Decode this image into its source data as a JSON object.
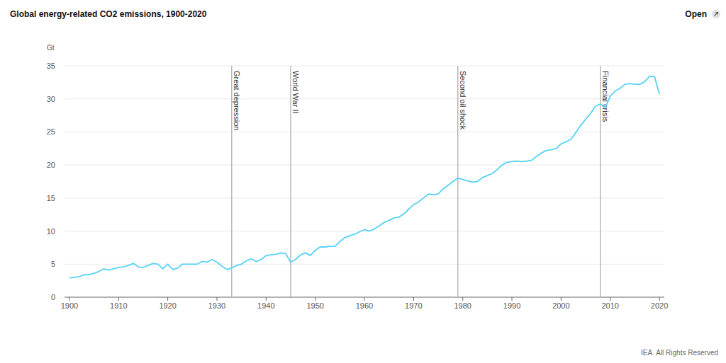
{
  "chart_data": {
    "type": "line",
    "title": "Global energy-related CO2 emissions, 1900-2020",
    "open_label": "Open",
    "y_label": "Gt",
    "source": "IEA. All Rights Reserved",
    "color": "#56d2f5",
    "grid": true,
    "x": [
      1900,
      1901,
      1902,
      1903,
      1904,
      1905,
      1906,
      1907,
      1908,
      1909,
      1910,
      1911,
      1912,
      1913,
      1914,
      1915,
      1916,
      1917,
      1918,
      1919,
      1920,
      1921,
      1922,
      1923,
      1924,
      1925,
      1926,
      1927,
      1928,
      1929,
      1930,
      1931,
      1932,
      1933,
      1934,
      1935,
      1936,
      1937,
      1938,
      1939,
      1940,
      1941,
      1942,
      1943,
      1944,
      1945,
      1946,
      1947,
      1948,
      1949,
      1950,
      1951,
      1952,
      1953,
      1954,
      1955,
      1956,
      1957,
      1958,
      1959,
      1960,
      1961,
      1962,
      1963,
      1964,
      1965,
      1966,
      1967,
      1968,
      1969,
      1970,
      1971,
      1972,
      1973,
      1974,
      1975,
      1976,
      1977,
      1978,
      1979,
      1980,
      1981,
      1982,
      1983,
      1984,
      1985,
      1986,
      1987,
      1988,
      1989,
      1990,
      1991,
      1992,
      1993,
      1994,
      1995,
      1996,
      1997,
      1998,
      1999,
      2000,
      2001,
      2002,
      2003,
      2004,
      2005,
      2006,
      2007,
      2008,
      2009,
      2010,
      2011,
      2012,
      2013,
      2014,
      2015,
      2016,
      2017,
      2018,
      2019,
      2020
    ],
    "values": [
      2.9,
      3.0,
      3.1,
      3.4,
      3.4,
      3.6,
      3.9,
      4.3,
      4.1,
      4.3,
      4.5,
      4.6,
      4.8,
      5.1,
      4.6,
      4.5,
      4.8,
      5.1,
      5.0,
      4.3,
      5.0,
      4.2,
      4.4,
      5.0,
      5.0,
      5.0,
      5.0,
      5.4,
      5.3,
      5.7,
      5.3,
      4.7,
      4.2,
      4.4,
      4.8,
      5.0,
      5.5,
      5.8,
      5.4,
      5.7,
      6.3,
      6.4,
      6.5,
      6.7,
      6.6,
      5.3,
      5.7,
      6.4,
      6.7,
      6.3,
      7.1,
      7.6,
      7.6,
      7.7,
      7.7,
      8.4,
      9.0,
      9.3,
      9.5,
      9.9,
      10.2,
      10.0,
      10.3,
      10.8,
      11.3,
      11.6,
      12.0,
      12.1,
      12.6,
      13.3,
      14.0,
      14.4,
      15.0,
      15.6,
      15.5,
      15.6,
      16.4,
      16.9,
      17.5,
      18.0,
      17.8,
      17.6,
      17.4,
      17.5,
      18.1,
      18.4,
      18.7,
      19.3,
      20.0,
      20.4,
      20.5,
      20.6,
      20.5,
      20.6,
      20.7,
      21.3,
      21.8,
      22.2,
      22.3,
      22.5,
      23.2,
      23.5,
      23.9,
      24.9,
      26.0,
      26.9,
      27.8,
      28.9,
      29.2,
      28.7,
      30.4,
      31.2,
      31.6,
      32.2,
      32.3,
      32.2,
      32.2,
      32.6,
      33.4,
      33.4,
      30.7
    ],
    "xlim": [
      1899,
      2021
    ],
    "xticks": [
      1900,
      1910,
      1920,
      1930,
      1940,
      1950,
      1960,
      1970,
      1980,
      1990,
      2000,
      2010,
      2020
    ],
    "ylim": [
      0,
      35
    ],
    "yticks": [
      0,
      5,
      10,
      15,
      20,
      25,
      30,
      35
    ],
    "annotations": [
      {
        "x": 1933,
        "label": "Great depression"
      },
      {
        "x": 1945,
        "label": "World War II"
      },
      {
        "x": 1979,
        "label": "Second oil shock"
      },
      {
        "x": 2008,
        "label": "Financial crisis"
      }
    ]
  }
}
